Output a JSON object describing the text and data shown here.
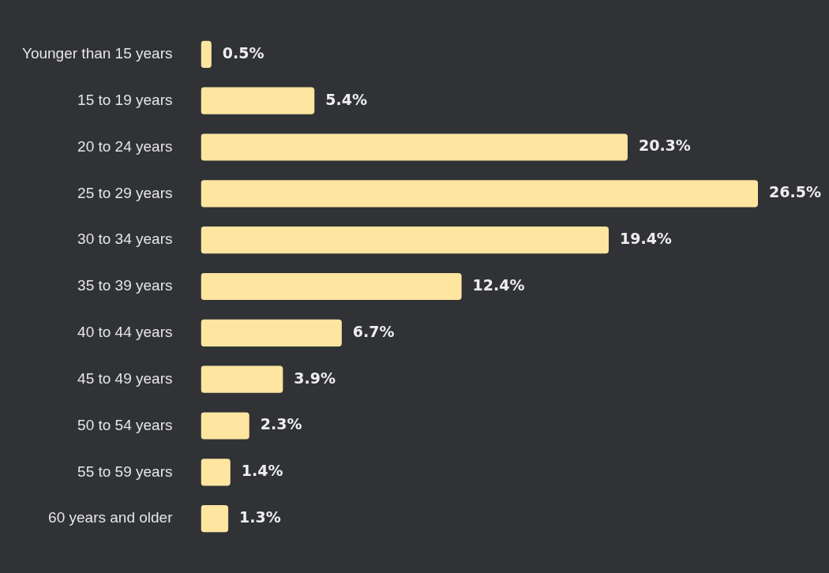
{
  "chart_data": {
    "type": "bar",
    "orientation": "horizontal",
    "categories": [
      "Younger than 15 years",
      "15 to 19 years",
      "20 to 24 years",
      "25 to 29 years",
      "30 to 34 years",
      "35 to 39 years",
      "40 to 44 years",
      "45 to 49 years",
      "50 to 54 years",
      "55 to 59 years",
      "60 years and older"
    ],
    "series": [
      {
        "color": "#fee5a0",
        "values": [
          0.5,
          5.4,
          20.3,
          26.5,
          19.4,
          12.4,
          6.7,
          3.9,
          2.3,
          1.4,
          1.3
        ],
        "value_labels": [
          "0.5%",
          "5.4%",
          "20.3%",
          "26.5%",
          "19.4%",
          "12.4%",
          "6.7%",
          "3.9%",
          "2.3%",
          "1.4%",
          "1.3%"
        ]
      }
    ],
    "legend": false
  }
}
